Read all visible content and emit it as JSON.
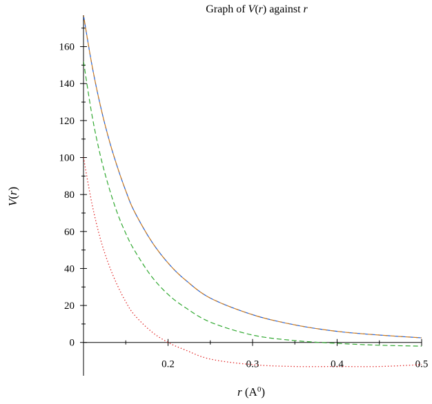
{
  "chart_data": {
    "type": "line",
    "title_parts": [
      {
        "text": "Graph of ",
        "italic": false
      },
      {
        "text": "V",
        "italic": true
      },
      {
        "text": "(",
        "italic": false
      },
      {
        "text": "r",
        "italic": true
      },
      {
        "text": ")",
        "italic": false
      },
      {
        "text": " against ",
        "italic": false
      },
      {
        "text": "r",
        "italic": true
      }
    ],
    "xlabel_parts": [
      {
        "text": "r",
        "italic": true
      },
      {
        "text": " (A",
        "italic": false
      },
      {
        "text": "0",
        "italic": false,
        "sup": true
      },
      {
        "text": ")",
        "italic": false
      }
    ],
    "ylabel_parts": [
      {
        "text": "V",
        "italic": true
      },
      {
        "text": "(",
        "italic": false
      },
      {
        "text": "r",
        "italic": true
      },
      {
        "text": ")",
        "italic": false
      }
    ],
    "xlim": [
      0.1,
      0.5
    ],
    "ylim": [
      -18,
      177
    ],
    "xticks": [
      0.2,
      0.3,
      0.4,
      0.5
    ],
    "xtick_labels": [
      "0.2",
      "0.3",
      "0.4",
      "0.5"
    ],
    "yticks": [
      0,
      20,
      40,
      60,
      80,
      100,
      120,
      140,
      160
    ],
    "ytick_labels": [
      "0",
      "20",
      "40",
      "60",
      "80",
      "100",
      "120",
      "140",
      "160"
    ],
    "grid": false,
    "x": [
      0.1,
      0.11,
      0.12,
      0.13,
      0.14,
      0.15,
      0.16,
      0.18,
      0.2,
      0.22,
      0.25,
      0.3,
      0.35,
      0.4,
      0.45,
      0.5
    ],
    "series": [
      {
        "color": "#1f5fd6",
        "style": "dashed",
        "values": [
          177,
          150,
          128,
          110,
          95,
          82,
          71,
          55,
          43,
          34,
          24,
          15,
          9.5,
          6,
          4,
          2.5
        ]
      },
      {
        "color": "#c8781e",
        "style": "dashed",
        "values": [
          177,
          150,
          128,
          110,
          95,
          82,
          71,
          55,
          43,
          34,
          24,
          15,
          9.5,
          6,
          4,
          2.5
        ]
      },
      {
        "color": "#2fa82f",
        "style": "dashed",
        "values": [
          152,
          123,
          101,
          84,
          70,
          59,
          50,
          36,
          26,
          19,
          11,
          4,
          1,
          -0.5,
          -1.5,
          -2
        ]
      },
      {
        "color": "#e02020",
        "style": "dotted",
        "values": [
          100,
          75,
          56,
          42,
          31,
          22,
          15,
          6,
          0,
          -4,
          -9,
          -12,
          -13,
          -13,
          -13,
          -12
        ]
      }
    ]
  }
}
